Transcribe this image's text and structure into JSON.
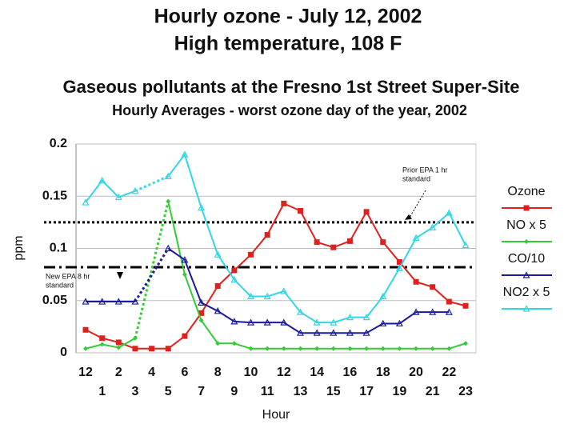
{
  "chart_data": {
    "type": "line",
    "title": [
      "Hourly ozone - July 12, 2002",
      "High temperature, 108 F"
    ],
    "subtitle": [
      "Gaseous pollutants  at the Fresno 1st Street Super-Site",
      "Hourly Averages - worst ozone day of the year, 2002"
    ],
    "x_label": "Hour",
    "y_label": "ppm",
    "categories": [
      "12",
      "1",
      "2",
      "3",
      "4",
      "5",
      "6",
      "7",
      "8",
      "9",
      "10",
      "11",
      "12",
      "13",
      "14",
      "15",
      "16",
      "17",
      "18",
      "19",
      "20",
      "21",
      "22",
      "23"
    ],
    "ylim": [
      0,
      0.2
    ],
    "yticks": [
      0,
      0.05,
      0.1,
      0.15,
      0.2
    ],
    "grid": true,
    "series": [
      {
        "name": "Ozone",
        "color": "#e0201c",
        "marker": "square",
        "values": [
          0.022,
          0.014,
          0.01,
          0.004,
          0.004,
          0.004,
          0.016,
          0.038,
          0.064,
          0.079,
          0.094,
          0.113,
          0.143,
          0.136,
          0.106,
          0.101,
          0.107,
          0.135,
          0.106,
          0.087,
          0.068,
          0.063,
          0.049,
          0.045
        ]
      },
      {
        "name": "NO x 5",
        "color": "#33cc33",
        "marker": "diamond",
        "values": [
          0.004,
          0.008,
          0.005,
          0.014,
          null,
          0.145,
          0.075,
          0.031,
          0.009,
          0.009,
          0.004,
          0.004,
          0.004,
          0.004,
          0.004,
          0.004,
          0.004,
          0.004,
          0.004,
          0.004,
          0.004,
          0.004,
          0.004,
          0.009
        ]
      },
      {
        "name": "CO/10",
        "color": "#1a1aa0",
        "marker": "triangle",
        "values": [
          0.049,
          0.049,
          0.049,
          0.049,
          null,
          0.1,
          0.089,
          0.048,
          0.04,
          0.03,
          0.029,
          0.029,
          0.029,
          0.019,
          0.019,
          0.019,
          0.019,
          0.019,
          0.028,
          0.028,
          0.039,
          0.039,
          0.039,
          null
        ]
      },
      {
        "name": "NO2 x 5",
        "color": "#33d6e6",
        "marker": "triangle",
        "values": [
          0.144,
          0.165,
          0.149,
          0.155,
          null,
          0.169,
          0.19,
          0.139,
          0.094,
          0.07,
          0.054,
          0.054,
          0.059,
          0.039,
          0.029,
          0.029,
          0.034,
          0.034,
          0.054,
          0.081,
          0.11,
          0.12,
          0.134,
          0.103
        ]
      }
    ],
    "reference_lines": [
      {
        "value": 0.125,
        "style": "dotted",
        "label": [
          "Prior EPA 1 hr",
          "standard"
        ]
      },
      {
        "value": 0.082,
        "style": "dashdot",
        "label": [
          "New EPA 8 hr",
          "standard"
        ]
      }
    ]
  }
}
